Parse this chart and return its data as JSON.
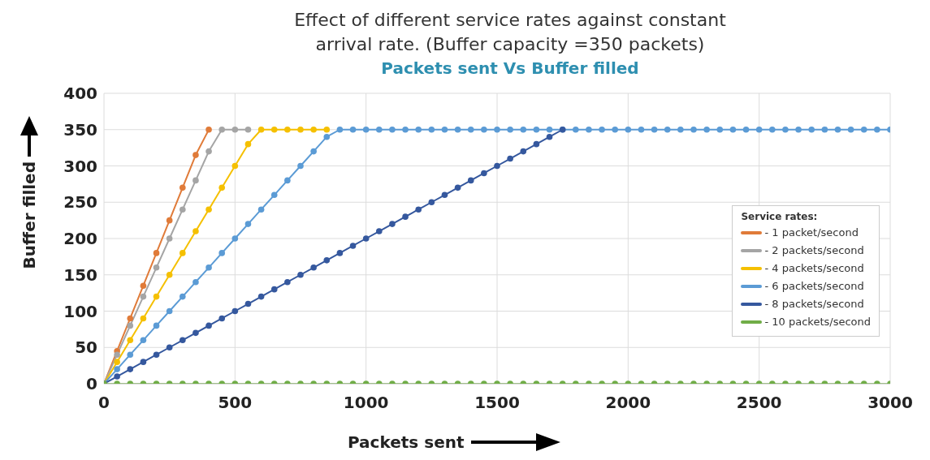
{
  "chart_data": {
    "type": "line",
    "title": "Effect of different service rates against constant arrival rate. (Buffer capacity =350 packets)",
    "subtitle": "Packets sent Vs Buffer filled",
    "xlabel": "Packets sent",
    "ylabel": "Buffer filled",
    "legend_title": "Service rates:",
    "x": [
      0,
      50,
      100,
      150,
      200,
      250,
      300,
      350,
      400,
      450,
      500,
      550,
      600,
      650,
      700,
      750,
      800,
      850,
      900,
      950,
      1000,
      1050,
      1100,
      1150,
      1200,
      1250,
      1300,
      1350,
      1400,
      1450,
      1500,
      1550,
      1600,
      1650,
      1700,
      1750,
      1800,
      1850,
      1900,
      1950,
      2000,
      2050,
      2100,
      2150,
      2200,
      2250,
      2300,
      2350,
      2400,
      2450,
      2500,
      2550,
      2600,
      2650,
      2700,
      2750,
      2800,
      2850,
      2900,
      2950,
      3000
    ],
    "series": [
      {
        "name": "- 1 packet/second",
        "color": "#e07b39",
        "values": [
          0,
          45,
          90,
          135,
          180,
          225,
          270,
          315,
          350,
          null,
          null,
          null,
          null,
          null,
          null,
          null,
          null,
          null,
          null,
          null,
          null,
          null,
          null,
          null,
          null,
          null,
          null,
          null,
          null,
          null,
          null,
          null,
          null,
          null,
          null,
          null,
          null,
          null,
          null,
          null,
          null,
          null,
          null,
          null,
          null,
          null,
          null,
          null,
          null,
          null,
          null,
          null,
          null,
          null,
          null,
          null,
          null,
          null,
          null,
          null,
          null
        ]
      },
      {
        "name": "- 2 packets/second",
        "color": "#a5a5a5",
        "values": [
          0,
          40,
          80,
          120,
          160,
          200,
          240,
          280,
          320,
          350,
          350,
          350,
          null,
          null,
          null,
          null,
          null,
          null,
          null,
          null,
          null,
          null,
          null,
          null,
          null,
          null,
          null,
          null,
          null,
          null,
          null,
          null,
          null,
          null,
          null,
          null,
          null,
          null,
          null,
          null,
          null,
          null,
          null,
          null,
          null,
          null,
          null,
          null,
          null,
          null,
          null,
          null,
          null,
          null,
          null,
          null,
          null,
          null,
          null,
          null,
          null
        ]
      },
      {
        "name": "- 4 packets/second",
        "color": "#f5c000",
        "values": [
          0,
          30,
          60,
          90,
          120,
          150,
          180,
          210,
          240,
          270,
          300,
          330,
          350,
          350,
          350,
          350,
          350,
          350,
          null,
          null,
          null,
          null,
          null,
          null,
          null,
          null,
          null,
          null,
          null,
          null,
          null,
          null,
          null,
          null,
          null,
          null,
          null,
          null,
          null,
          null,
          null,
          null,
          null,
          null,
          null,
          null,
          null,
          null,
          null,
          null,
          null,
          null,
          null,
          null,
          null,
          null,
          null,
          null,
          null,
          null,
          null
        ]
      },
      {
        "name": "- 6 packets/second",
        "color": "#5b9bd5",
        "values": [
          0,
          20,
          40,
          60,
          80,
          100,
          120,
          140,
          160,
          180,
          200,
          220,
          240,
          260,
          280,
          300,
          320,
          340,
          350,
          350,
          350,
          350,
          350,
          350,
          350,
          350,
          350,
          350,
          350,
          350,
          350,
          350,
          350,
          350,
          350,
          350,
          350,
          350,
          350,
          350,
          350,
          350,
          350,
          350,
          350,
          350,
          350,
          350,
          350,
          350,
          350,
          350,
          350,
          350,
          350,
          350,
          350,
          350,
          350,
          350,
          350
        ]
      },
      {
        "name": "- 8 packets/second",
        "color": "#35589e",
        "values": [
          0,
          10,
          20,
          30,
          40,
          50,
          60,
          70,
          80,
          90,
          100,
          110,
          120,
          130,
          140,
          150,
          160,
          170,
          180,
          190,
          200,
          210,
          220,
          230,
          240,
          250,
          260,
          270,
          280,
          290,
          300,
          310,
          320,
          330,
          340,
          350,
          null,
          null,
          null,
          null,
          null,
          null,
          null,
          null,
          null,
          null,
          null,
          null,
          null,
          null,
          null,
          null,
          null,
          null,
          null,
          null,
          null,
          null,
          null,
          null,
          null
        ]
      },
      {
        "name": "- 10 packets/second",
        "color": "#70ad47",
        "values": [
          0,
          0,
          0,
          0,
          0,
          0,
          0,
          0,
          0,
          0,
          0,
          0,
          0,
          0,
          0,
          0,
          0,
          0,
          0,
          0,
          0,
          0,
          0,
          0,
          0,
          0,
          0,
          0,
          0,
          0,
          0,
          0,
          0,
          0,
          0,
          0,
          0,
          0,
          0,
          0,
          0,
          0,
          0,
          0,
          0,
          0,
          0,
          0,
          0,
          0,
          0,
          0,
          0,
          0,
          0,
          0,
          0,
          0,
          0,
          0,
          0
        ]
      }
    ],
    "xlim": [
      0,
      3000
    ],
    "xticks": [
      0,
      500,
      1000,
      1500,
      2000,
      2500,
      3000
    ],
    "ylim": [
      0,
      400
    ],
    "yticks": [
      0,
      50,
      100,
      150,
      200,
      250,
      300,
      350,
      400
    ],
    "grid": true,
    "legend": "right",
    "marker": "circle",
    "line_style": "solid"
  }
}
